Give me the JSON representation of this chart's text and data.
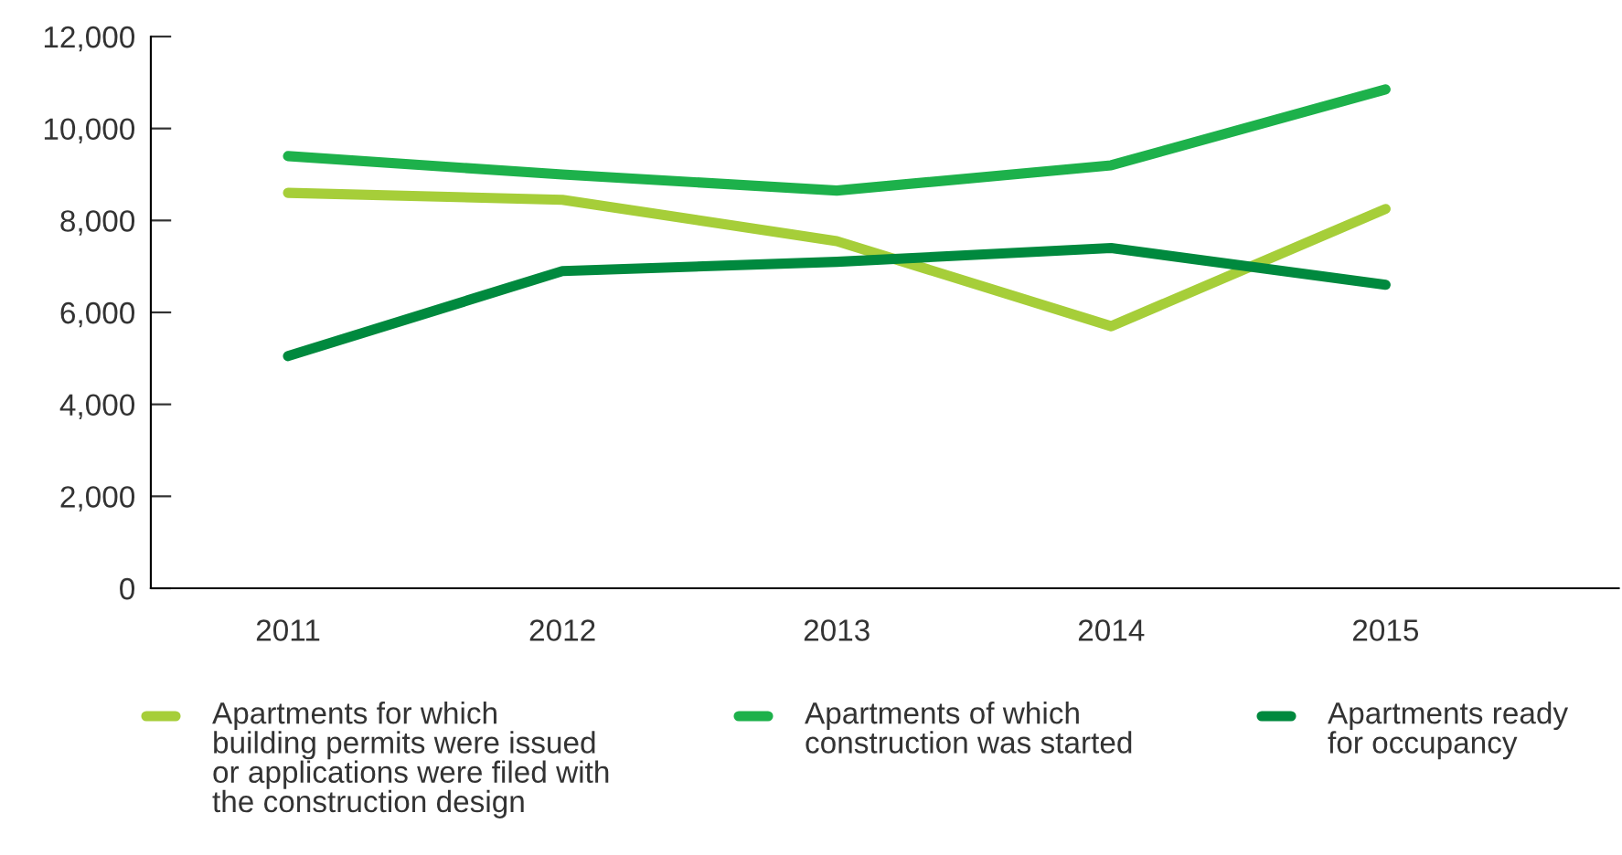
{
  "chart_data": {
    "type": "line",
    "categories": [
      "2011",
      "2012",
      "2013",
      "2014",
      "2015"
    ],
    "series": [
      {
        "name": "Apartments for which\nbuilding permits were issued\nor applications were filed with\nthe construction design",
        "color": "#a6ce39",
        "values": [
          8600,
          8450,
          7550,
          5700,
          8250
        ]
      },
      {
        "name": "Apartments of which\nconstruction was started",
        "color": "#1db14b",
        "values": [
          9400,
          9000,
          8650,
          9200,
          10850
        ]
      },
      {
        "name": "Apartments ready\nfor occupancy",
        "color": "#00893e",
        "values": [
          5050,
          6900,
          7100,
          7400,
          6600
        ]
      }
    ],
    "ylim": [
      0,
      12000
    ],
    "yticks": [
      {
        "value": 0,
        "label": "0"
      },
      {
        "value": 2000,
        "label": "2,000"
      },
      {
        "value": 4000,
        "label": "4,000"
      },
      {
        "value": 6000,
        "label": "6,000"
      },
      {
        "value": 8000,
        "label": "8,000"
      },
      {
        "value": 10000,
        "label": "10,000"
      },
      {
        "value": 12000,
        "label": "12,000"
      }
    ],
    "grid": false,
    "legend": "bottom",
    "marker": "none",
    "line_style": "solid"
  }
}
